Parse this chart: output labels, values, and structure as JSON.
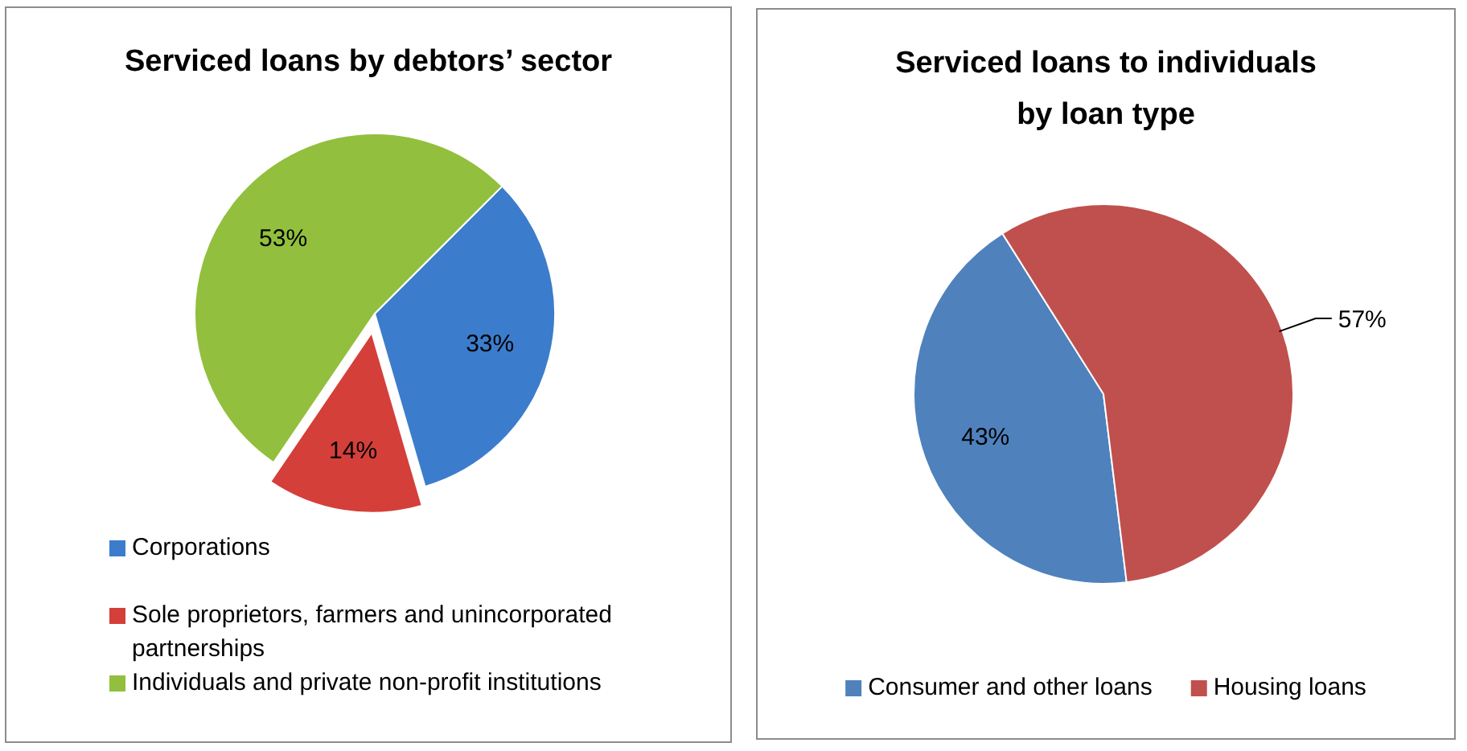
{
  "chart_data": [
    {
      "type": "pie",
      "title": "Serviced loans by debtors’ sector",
      "categories": [
        "Corporations",
        "Sole proprietors, farmers and unincorporated partnerships",
        "Individuals and private non-profit institutions"
      ],
      "values": [
        33,
        14,
        53
      ],
      "colors": [
        "#3c7ccc",
        "#d43f3a",
        "#92bf3d"
      ],
      "value_labels": [
        "33%",
        "14%",
        "53%"
      ],
      "legend": "bottom"
    },
    {
      "type": "pie",
      "title": "Serviced loans to individuals\nby loan type",
      "categories": [
        "Consumer and other loans",
        "Housing loans"
      ],
      "values": [
        43,
        57
      ],
      "colors": [
        "#4f81bd",
        "#c0504d"
      ],
      "value_labels": [
        "43%",
        "57%"
      ],
      "legend": "bottom"
    }
  ]
}
